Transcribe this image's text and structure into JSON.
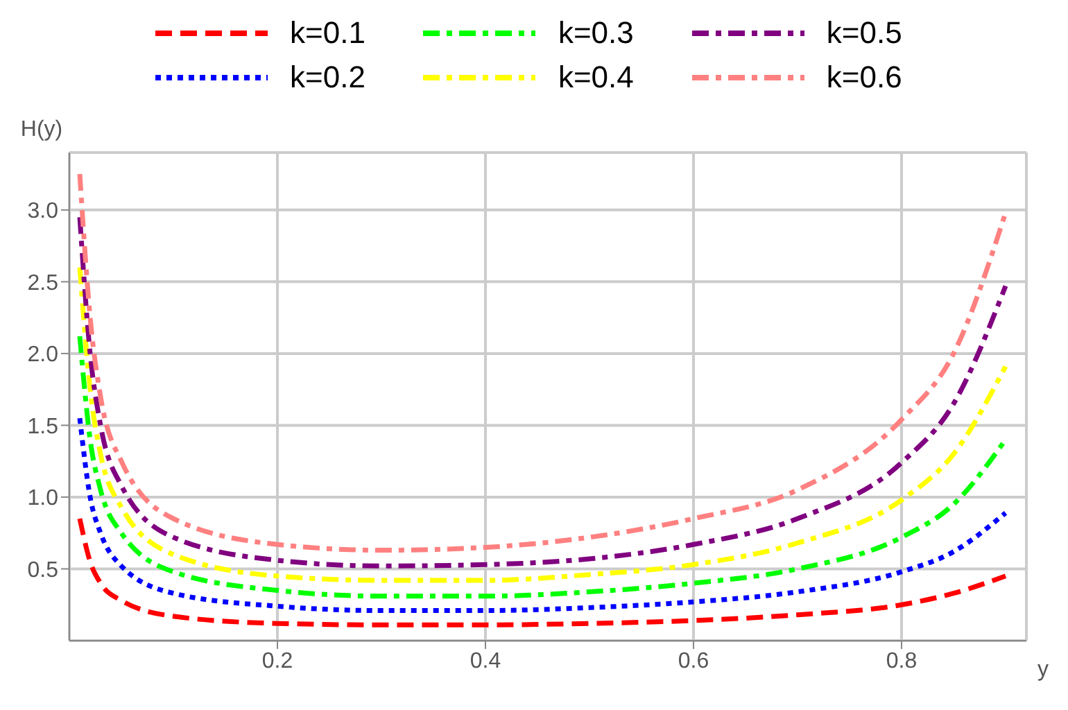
{
  "chart_data": {
    "type": "line",
    "xlabel": "y",
    "ylabel": "H(y)",
    "x": [
      0.01,
      0.02,
      0.03,
      0.05,
      0.1,
      0.2,
      0.3,
      0.4,
      0.5,
      0.6,
      0.7,
      0.8,
      0.85,
      0.9
    ],
    "xlim": [
      0,
      0.92
    ],
    "ylim": [
      0,
      3.4
    ],
    "xticks": [
      0.2,
      0.4,
      0.6,
      0.8
    ],
    "yticks": [
      0.5,
      {
        "value": 1,
        "label": "1.0"
      },
      1.5,
      {
        "value": 2,
        "label": "2.0"
      },
      2.5,
      {
        "value": 3,
        "label": "3.0"
      }
    ],
    "grid": true,
    "legend": "top",
    "marker": "none",
    "series": [
      {
        "name": "k=0.1",
        "color": "#ff0000",
        "line_style": "dashed",
        "values": [
          0.85,
          0.55,
          0.4,
          0.28,
          0.17,
          0.12,
          0.11,
          0.11,
          0.12,
          0.14,
          0.18,
          0.25,
          0.33,
          0.45
        ]
      },
      {
        "name": "k=0.2",
        "color": "#0000ff",
        "line_style": "dotted",
        "values": [
          1.55,
          1.0,
          0.75,
          0.52,
          0.33,
          0.24,
          0.21,
          0.21,
          0.23,
          0.27,
          0.34,
          0.48,
          0.62,
          0.89
        ]
      },
      {
        "name": "k=0.3",
        "color": "#00ff00",
        "line_style": "dashdot",
        "values": [
          2.12,
          1.4,
          1.05,
          0.75,
          0.48,
          0.35,
          0.31,
          0.31,
          0.34,
          0.4,
          0.5,
          0.72,
          0.95,
          1.4
        ]
      },
      {
        "name": "k=0.4",
        "color": "#ffff00",
        "line_style": "dashdot",
        "values": [
          2.6,
          1.75,
          1.3,
          0.93,
          0.6,
          0.45,
          0.42,
          0.42,
          0.46,
          0.53,
          0.68,
          0.98,
          1.3,
          1.91
        ]
      },
      {
        "name": "k=0.5",
        "color": "#800080",
        "line_style": "dashdot",
        "values": [
          2.95,
          2.0,
          1.5,
          1.08,
          0.72,
          0.56,
          0.52,
          0.53,
          0.57,
          0.67,
          0.85,
          1.24,
          1.65,
          2.47
        ]
      },
      {
        "name": "k=0.6",
        "color": "#ff8080",
        "line_style": "dashdot",
        "values": [
          3.25,
          2.25,
          1.7,
          1.25,
          0.85,
          0.67,
          0.63,
          0.65,
          0.72,
          0.85,
          1.05,
          1.54,
          2.0,
          2.98
        ]
      }
    ]
  }
}
